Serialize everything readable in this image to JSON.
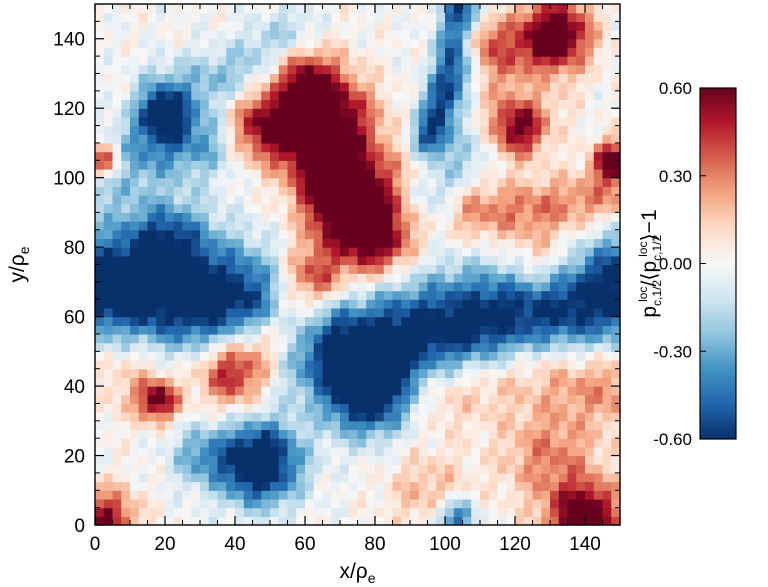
{
  "chart_data": {
    "type": "heatmap",
    "title": "",
    "xlabel": "x/ρ",
    "xlabel_sub": "e",
    "ylabel": "y/ρ",
    "ylabel_sub": "e",
    "xlim": [
      0,
      150
    ],
    "ylim": [
      0,
      150
    ],
    "x_ticks": [
      0,
      20,
      40,
      60,
      80,
      100,
      120,
      140
    ],
    "y_ticks": [
      0,
      20,
      40,
      60,
      80,
      100,
      120,
      140
    ],
    "grid": false,
    "grid_resolution": [
      60,
      60
    ],
    "colormap": "RdBu_r",
    "colorscale": {
      "min": -0.6,
      "max": 0.6,
      "ticks": [
        "-0.60",
        "-0.30",
        "0.00",
        "0.30",
        "0.60"
      ],
      "label_parts": [
        "p",
        "c,1/2",
        "loc",
        "/⟨p",
        "c,1/2",
        "loc",
        "⟩−1"
      ],
      "stops": [
        "#08306b",
        "#2166ac",
        "#4393c3",
        "#92c5de",
        "#d1e5f0",
        "#f7f7f7",
        "#fddbc7",
        "#f4a582",
        "#d6604d",
        "#b2182b",
        "#67001f"
      ]
    },
    "features": [
      {
        "kind": "band",
        "points": [
          [
            0,
            68
          ],
          [
            40,
            64
          ],
          [
            75,
            50
          ],
          [
            110,
            58
          ],
          [
            150,
            68
          ]
        ],
        "amplitude": -0.72,
        "width": 11
      },
      {
        "kind": "band",
        "points": [
          [
            0,
            102
          ],
          [
            15,
            108
          ],
          [
            30,
            110
          ]
        ],
        "amplitude": -0.35,
        "width": 7
      },
      {
        "kind": "band",
        "points": [
          [
            60,
            128
          ],
          [
            62,
            110
          ],
          [
            72,
            90
          ],
          [
            80,
            82
          ]
        ],
        "amplitude": 0.6,
        "width": 7
      },
      {
        "kind": "band",
        "points": [
          [
            40,
            45
          ],
          [
            55,
            58
          ],
          [
            62,
            70
          ]
        ],
        "amplitude": 0.65,
        "width": 7
      },
      {
        "kind": "band",
        "points": [
          [
            100,
            40
          ],
          [
            125,
            46
          ],
          [
            150,
            40
          ]
        ],
        "amplitude": 0.3,
        "width": 8
      },
      {
        "kind": "band",
        "points": [
          [
            105,
            149
          ],
          [
            102,
            130
          ],
          [
            96,
            112
          ]
        ],
        "amplitude": -0.6,
        "width": 4
      },
      {
        "kind": "band",
        "points": [
          [
            20,
            125
          ],
          [
            40,
            130
          ],
          [
            55,
            140
          ]
        ],
        "amplitude": -0.25,
        "width": 6
      },
      {
        "kind": "band",
        "points": [
          [
            110,
            90
          ],
          [
            130,
            92
          ],
          [
            150,
            95
          ]
        ],
        "amplitude": 0.3,
        "width": 6
      },
      {
        "kind": "band",
        "points": [
          [
            95,
            95
          ],
          [
            110,
            110
          ],
          [
            125,
            128
          ]
        ],
        "amplitude": -0.2,
        "width": 5
      },
      {
        "kind": "blob",
        "x": 47,
        "y": 18,
        "r": 8,
        "amplitude": -0.85
      },
      {
        "kind": "blob",
        "x": 78,
        "y": 37,
        "r": 8,
        "amplitude": -0.55
      },
      {
        "kind": "blob",
        "x": 75,
        "y": 96,
        "r": 10,
        "amplitude": 0.55
      },
      {
        "kind": "blob",
        "x": 70,
        "y": 118,
        "r": 8,
        "amplitude": 0.45
      },
      {
        "kind": "blob",
        "x": 48,
        "y": 115,
        "r": 7,
        "amplitude": 0.55
      },
      {
        "kind": "blob",
        "x": 120,
        "y": 115,
        "r": 6,
        "amplitude": 0.7
      },
      {
        "kind": "blob",
        "x": 132,
        "y": 142,
        "r": 7,
        "amplitude": 0.65
      },
      {
        "kind": "blob",
        "x": 122,
        "y": 132,
        "r": 9,
        "amplitude": 0.35
      },
      {
        "kind": "blob",
        "x": 18,
        "y": 36,
        "r": 4,
        "amplitude": 0.6
      },
      {
        "kind": "blob",
        "x": 20,
        "y": 118,
        "r": 5,
        "amplitude": -0.6
      },
      {
        "kind": "blob",
        "x": 2,
        "y": 105,
        "r": 4,
        "amplitude": 0.7
      },
      {
        "kind": "blob",
        "x": 148,
        "y": 105,
        "r": 4,
        "amplitude": 0.65
      },
      {
        "kind": "blob",
        "x": 3,
        "y": 2,
        "r": 6,
        "amplitude": 0.55
      },
      {
        "kind": "blob",
        "x": 140,
        "y": 2,
        "r": 7,
        "amplitude": 0.75
      },
      {
        "kind": "blob",
        "x": 103,
        "y": 2,
        "r": 4,
        "amplitude": -0.5
      },
      {
        "kind": "blob",
        "x": 20,
        "y": 82,
        "r": 9,
        "amplitude": -0.45
      },
      {
        "kind": "blob",
        "x": 128,
        "y": 75,
        "r": 8,
        "amplitude": 0.35
      },
      {
        "kind": "blob",
        "x": 130,
        "y": 20,
        "r": 10,
        "amplitude": 0.3
      },
      {
        "kind": "blob",
        "x": 95,
        "y": 10,
        "r": 8,
        "amplitude": 0.2
      },
      {
        "kind": "blob",
        "x": 10,
        "y": 45,
        "r": 9,
        "amplitude": 0.2
      },
      {
        "kind": "blob",
        "x": 30,
        "y": 20,
        "r": 6,
        "amplitude": -0.3
      },
      {
        "kind": "blob",
        "x": 110,
        "y": 140,
        "r": 5,
        "amplitude": 0.3
      }
    ]
  }
}
